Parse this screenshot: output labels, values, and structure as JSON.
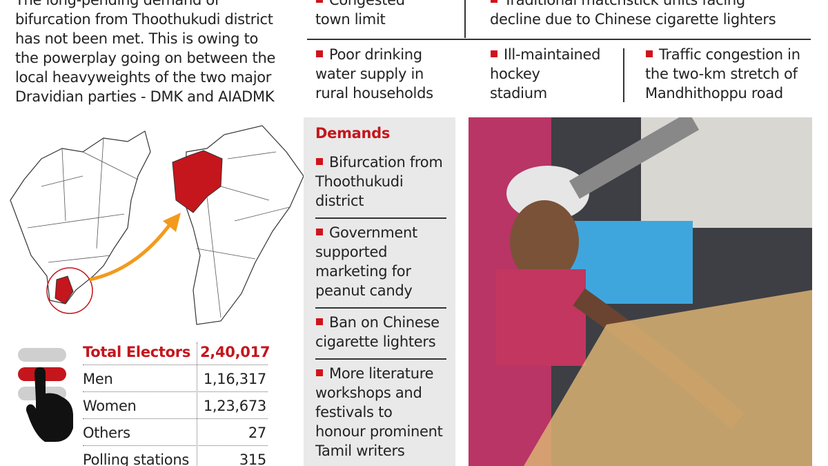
{
  "intro": [
    "The long-pending demand of",
    "bifurcation from Thoothukudi district",
    "has not been met. This is owing to",
    "the powerplay going on between the",
    "local heavyweights of the two major",
    "Dravidian parties - DMK and AIADMK"
  ],
  "issues": [
    [
      "Congested",
      "town limit"
    ],
    [
      "Traditional matchstick units facing",
      "decline due to Chinese cigarette lighters"
    ],
    [
      "Poor drinking",
      "water supply in",
      "rural households"
    ],
    [
      "Ill-maintained",
      "hockey",
      "stadium"
    ],
    [
      "Traffic congestion in",
      "the two-km stretch of",
      "Mandhithoppu road"
    ]
  ],
  "demands": {
    "title": "Demands",
    "items": [
      [
        "Bifurcation from",
        "Thoothukudi",
        "district"
      ],
      [
        "Government",
        "supported",
        "marketing for",
        "peanut candy"
      ],
      [
        "Ban on Chinese",
        "cigarette lighters"
      ],
      [
        "More literature",
        "workshops and",
        "festivals to",
        "honour prominent",
        "Tamil writers"
      ]
    ]
  },
  "electors": [
    [
      "Total Electors",
      "2,40,017"
    ],
    [
      "Men",
      "1,16,317"
    ],
    [
      "Women",
      "1,23,673"
    ],
    [
      "Others",
      "27"
    ],
    [
      "Polling stations",
      "315"
    ]
  ]
}
